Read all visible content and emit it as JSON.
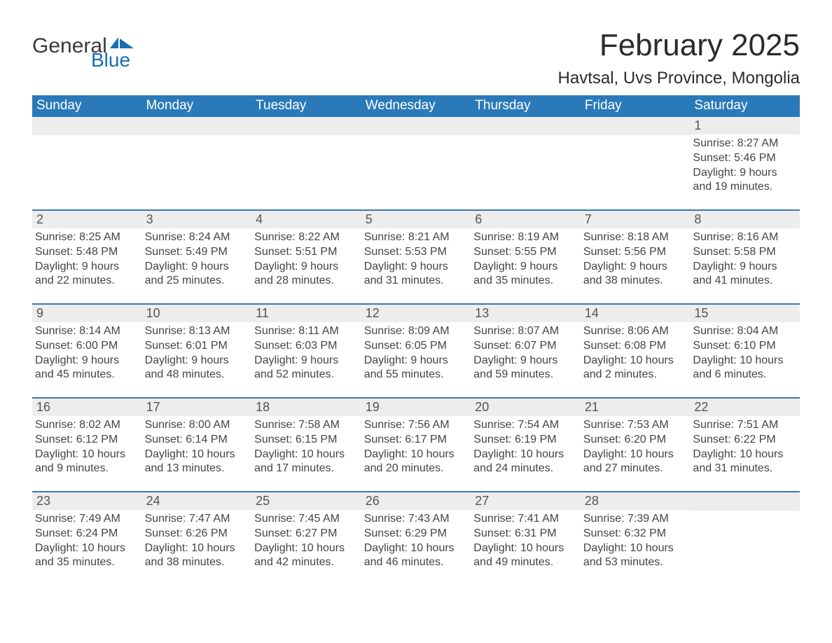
{
  "brand": {
    "word1": "General",
    "word2": "Blue"
  },
  "title": "February 2025",
  "location": "Havtsal, Uvs Province, Mongolia",
  "colors": {
    "header_blue": "#2a7ab9",
    "row_divider": "#3a7ab0",
    "daynum_bg": "#ededed",
    "text_dark": "#333333",
    "logo_blue": "#1a6fb0",
    "page_bg": "#ffffff"
  },
  "layout": {
    "type": "calendar",
    "columns": 7,
    "rows": 5,
    "first_day_column_index": 6
  },
  "days_of_week": [
    "Sunday",
    "Monday",
    "Tuesday",
    "Wednesday",
    "Thursday",
    "Friday",
    "Saturday"
  ],
  "labels": {
    "sunrise": "Sunrise",
    "sunset": "Sunset",
    "daylight": "Daylight"
  },
  "days": [
    {
      "n": 1,
      "sunrise": "8:27 AM",
      "sunset": "5:46 PM",
      "daylight": "9 hours and 19 minutes."
    },
    {
      "n": 2,
      "sunrise": "8:25 AM",
      "sunset": "5:48 PM",
      "daylight": "9 hours and 22 minutes."
    },
    {
      "n": 3,
      "sunrise": "8:24 AM",
      "sunset": "5:49 PM",
      "daylight": "9 hours and 25 minutes."
    },
    {
      "n": 4,
      "sunrise": "8:22 AM",
      "sunset": "5:51 PM",
      "daylight": "9 hours and 28 minutes."
    },
    {
      "n": 5,
      "sunrise": "8:21 AM",
      "sunset": "5:53 PM",
      "daylight": "9 hours and 31 minutes."
    },
    {
      "n": 6,
      "sunrise": "8:19 AM",
      "sunset": "5:55 PM",
      "daylight": "9 hours and 35 minutes."
    },
    {
      "n": 7,
      "sunrise": "8:18 AM",
      "sunset": "5:56 PM",
      "daylight": "9 hours and 38 minutes."
    },
    {
      "n": 8,
      "sunrise": "8:16 AM",
      "sunset": "5:58 PM",
      "daylight": "9 hours and 41 minutes."
    },
    {
      "n": 9,
      "sunrise": "8:14 AM",
      "sunset": "6:00 PM",
      "daylight": "9 hours and 45 minutes."
    },
    {
      "n": 10,
      "sunrise": "8:13 AM",
      "sunset": "6:01 PM",
      "daylight": "9 hours and 48 minutes."
    },
    {
      "n": 11,
      "sunrise": "8:11 AM",
      "sunset": "6:03 PM",
      "daylight": "9 hours and 52 minutes."
    },
    {
      "n": 12,
      "sunrise": "8:09 AM",
      "sunset": "6:05 PM",
      "daylight": "9 hours and 55 minutes."
    },
    {
      "n": 13,
      "sunrise": "8:07 AM",
      "sunset": "6:07 PM",
      "daylight": "9 hours and 59 minutes."
    },
    {
      "n": 14,
      "sunrise": "8:06 AM",
      "sunset": "6:08 PM",
      "daylight": "10 hours and 2 minutes."
    },
    {
      "n": 15,
      "sunrise": "8:04 AM",
      "sunset": "6:10 PM",
      "daylight": "10 hours and 6 minutes."
    },
    {
      "n": 16,
      "sunrise": "8:02 AM",
      "sunset": "6:12 PM",
      "daylight": "10 hours and 9 minutes."
    },
    {
      "n": 17,
      "sunrise": "8:00 AM",
      "sunset": "6:14 PM",
      "daylight": "10 hours and 13 minutes."
    },
    {
      "n": 18,
      "sunrise": "7:58 AM",
      "sunset": "6:15 PM",
      "daylight": "10 hours and 17 minutes."
    },
    {
      "n": 19,
      "sunrise": "7:56 AM",
      "sunset": "6:17 PM",
      "daylight": "10 hours and 20 minutes."
    },
    {
      "n": 20,
      "sunrise": "7:54 AM",
      "sunset": "6:19 PM",
      "daylight": "10 hours and 24 minutes."
    },
    {
      "n": 21,
      "sunrise": "7:53 AM",
      "sunset": "6:20 PM",
      "daylight": "10 hours and 27 minutes."
    },
    {
      "n": 22,
      "sunrise": "7:51 AM",
      "sunset": "6:22 PM",
      "daylight": "10 hours and 31 minutes."
    },
    {
      "n": 23,
      "sunrise": "7:49 AM",
      "sunset": "6:24 PM",
      "daylight": "10 hours and 35 minutes."
    },
    {
      "n": 24,
      "sunrise": "7:47 AM",
      "sunset": "6:26 PM",
      "daylight": "10 hours and 38 minutes."
    },
    {
      "n": 25,
      "sunrise": "7:45 AM",
      "sunset": "6:27 PM",
      "daylight": "10 hours and 42 minutes."
    },
    {
      "n": 26,
      "sunrise": "7:43 AM",
      "sunset": "6:29 PM",
      "daylight": "10 hours and 46 minutes."
    },
    {
      "n": 27,
      "sunrise": "7:41 AM",
      "sunset": "6:31 PM",
      "daylight": "10 hours and 49 minutes."
    },
    {
      "n": 28,
      "sunrise": "7:39 AM",
      "sunset": "6:32 PM",
      "daylight": "10 hours and 53 minutes."
    }
  ]
}
